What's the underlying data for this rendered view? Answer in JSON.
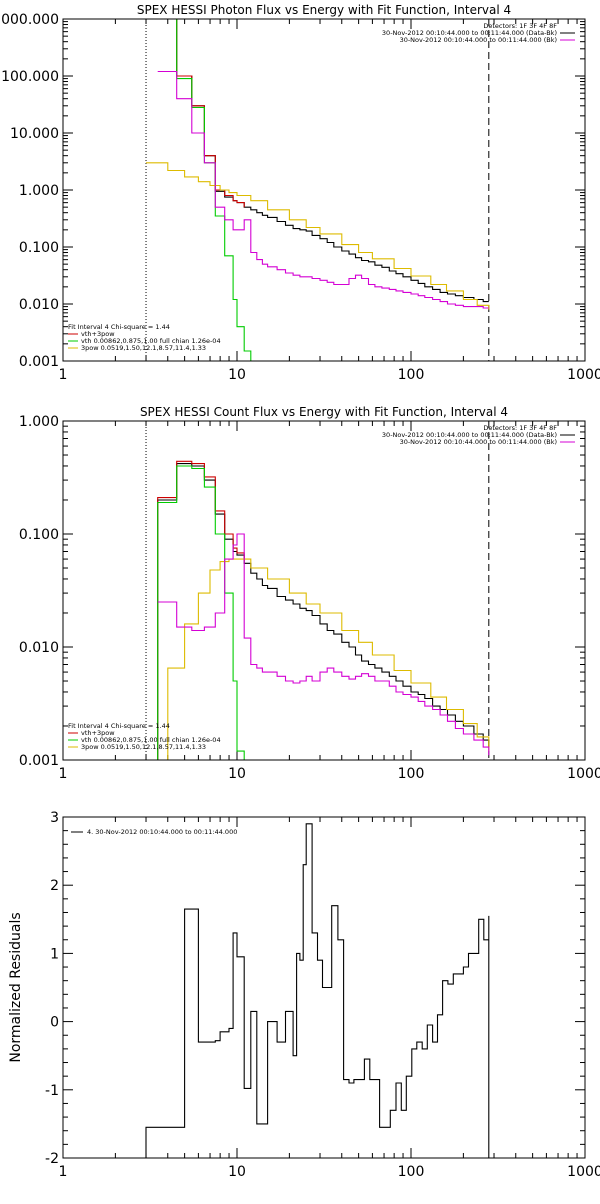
{
  "chart_data": [
    {
      "type": "line",
      "title": "SPEX HESSI Photon Flux vs Energy with Fit Function, Interval 4",
      "ylabel": "",
      "xscale": "log",
      "yscale": "log",
      "xlim": [
        1,
        1000
      ],
      "ylim": [
        0.001,
        1000
      ],
      "x_ticks": [
        1,
        10,
        100,
        1000
      ],
      "x_tick_labels": [
        "1",
        "10",
        "100",
        "1000"
      ],
      "y_ticks": [
        0.001,
        0.01,
        0.1,
        1,
        10,
        100,
        1000
      ],
      "y_tick_labels": [
        "0.001",
        "0.010",
        "0.100",
        "1.000",
        "10.000",
        "100.000",
        "1000.000"
      ],
      "vlines": [
        {
          "x": 3.0,
          "style": "dotted"
        },
        {
          "x": 280,
          "style": "dashed"
        }
      ],
      "header_legend": [
        {
          "text": "Detectors: 1F 3F 4F 8F",
          "color": "#000000"
        },
        {
          "text": "30-Nov-2012 00:10:44.000 to 00:11:44.000 (Data-Bk)",
          "color": "#000000"
        },
        {
          "text": "30-Nov-2012 00:10:44.000 to 00:11:44.000 (Bk)",
          "color": "#d400d4"
        }
      ],
      "fit_legend": [
        {
          "text": "Fit Interval 4    Chi-square = 1.44",
          "color": null
        },
        {
          "text": "vth+3pow",
          "color": "#cc0000"
        },
        {
          "text": "vth 0.00862,0.875,1.00  full chian 1.26e-04",
          "color": "#00cc00"
        },
        {
          "text": "3pow 0.0519,1.50,12.1,8.57,11.4,1.33",
          "color": "#ddbb00"
        }
      ],
      "series": [
        {
          "name": "Data-Bk",
          "color": "#000000",
          "x": [
            3.0,
            3.5,
            4.0,
            4.5,
            5.0,
            5.5,
            6.0,
            6.5,
            7.0,
            7.5,
            8.0,
            8.5,
            9.0,
            9.5,
            10,
            11,
            12,
            13,
            14,
            15,
            17,
            19,
            21,
            23,
            25,
            27,
            30,
            33,
            36,
            40,
            44,
            48,
            52,
            57,
            62,
            68,
            75,
            82,
            90,
            100,
            110,
            120,
            133,
            147,
            162,
            180,
            200,
            230,
            260,
            280
          ],
          "y": [
            1000,
            1000,
            1000,
            100,
            100,
            30,
            30,
            4.0,
            4.0,
            0.95,
            0.95,
            0.75,
            0.75,
            0.65,
            0.6,
            0.5,
            0.45,
            0.4,
            0.36,
            0.33,
            0.28,
            0.24,
            0.21,
            0.2,
            0.19,
            0.16,
            0.14,
            0.12,
            0.1,
            0.085,
            0.075,
            0.065,
            0.058,
            0.055,
            0.048,
            0.044,
            0.038,
            0.034,
            0.03,
            0.026,
            0.023,
            0.02,
            0.018,
            0.016,
            0.015,
            0.014,
            0.013,
            0.012,
            0.011,
            0.011
          ]
        },
        {
          "name": "vth+3pow",
          "color": "#cc0000",
          "x": [
            3.0,
            3.5,
            4.0,
            4.5,
            5.0,
            5.5,
            6.0,
            6.5,
            7.0,
            7.5,
            8.0,
            8.5,
            9.0,
            9.5,
            10,
            11
          ],
          "y": [
            1000,
            1000,
            1000,
            100,
            100,
            30,
            30,
            4.0,
            4.0,
            1.0,
            1.0,
            0.8,
            0.8,
            0.65,
            0.6,
            0.5
          ]
        },
        {
          "name": "vth",
          "color": "#00cc00",
          "x": [
            3.0,
            3.5,
            4.0,
            4.5,
            5.0,
            5.5,
            6.0,
            6.5,
            7.0,
            7.5,
            8.0,
            8.5,
            9.0,
            9.5,
            10,
            11,
            12
          ],
          "y": [
            1000,
            1000,
            1000,
            90,
            90,
            28,
            28,
            3.0,
            3.0,
            0.35,
            0.35,
            0.07,
            0.07,
            0.012,
            0.004,
            0.0015,
            0.001
          ]
        },
        {
          "name": "3pow",
          "color": "#ddbb00",
          "x": [
            3.0,
            4.0,
            5.0,
            6.0,
            7.0,
            8.0,
            9.0,
            10,
            12,
            15,
            20,
            25,
            30,
            40,
            50,
            60,
            80,
            100,
            130,
            160,
            200,
            240,
            280
          ],
          "y": [
            3.0,
            2.2,
            1.7,
            1.4,
            1.2,
            1.0,
            0.9,
            0.8,
            0.65,
            0.45,
            0.3,
            0.22,
            0.17,
            0.11,
            0.08,
            0.062,
            0.042,
            0.031,
            0.022,
            0.017,
            0.012,
            0.0095,
            0.008
          ]
        },
        {
          "name": "Bk",
          "color": "#d400d4",
          "x": [
            3.5,
            4.0,
            4.5,
            5.0,
            5.5,
            6.0,
            6.5,
            7.0,
            7.5,
            8.0,
            8.5,
            9.0,
            9.5,
            10,
            11,
            12,
            13,
            14,
            15,
            17,
            19,
            21,
            23,
            25,
            27,
            30,
            33,
            36,
            40,
            44,
            48,
            52,
            57,
            62,
            68,
            75,
            82,
            90,
            100,
            110,
            120,
            133,
            147,
            162,
            180,
            200,
            230,
            260,
            280
          ],
          "y": [
            120,
            120,
            40,
            40,
            10,
            10,
            3.0,
            3.0,
            0.5,
            0.5,
            0.3,
            0.3,
            0.2,
            0.2,
            0.3,
            0.08,
            0.06,
            0.05,
            0.045,
            0.04,
            0.035,
            0.032,
            0.03,
            0.03,
            0.028,
            0.026,
            0.024,
            0.022,
            0.022,
            0.028,
            0.032,
            0.028,
            0.022,
            0.02,
            0.019,
            0.018,
            0.017,
            0.016,
            0.015,
            0.014,
            0.013,
            0.012,
            0.011,
            0.01,
            0.0095,
            0.009,
            0.009,
            0.0085,
            0.0085
          ]
        }
      ]
    },
    {
      "type": "line",
      "title": "SPEX HESSI Count Flux vs Energy with Fit Function, Interval 4",
      "ylabel": "",
      "xscale": "log",
      "yscale": "log",
      "xlim": [
        1,
        1000
      ],
      "ylim": [
        0.001,
        1
      ],
      "x_ticks": [
        1,
        10,
        100,
        1000
      ],
      "x_tick_labels": [
        "1",
        "10",
        "100",
        "1000"
      ],
      "y_ticks": [
        0.001,
        0.01,
        0.1,
        1
      ],
      "y_tick_labels": [
        "0.001",
        "0.010",
        "0.100",
        "1.000"
      ],
      "vlines": [
        {
          "x": 3.0,
          "style": "dotted"
        },
        {
          "x": 280,
          "style": "dashed"
        }
      ],
      "header_legend": [
        {
          "text": "Detectors: 1F 3F 4F 8F",
          "color": "#000000"
        },
        {
          "text": "30-Nov-2012 00:10:44.000 to 00:11:44.000 (Data-Bk)",
          "color": "#000000"
        },
        {
          "text": "30-Nov-2012 00:10:44.000 to 00:11:44.000 (Bk)",
          "color": "#d400d4"
        }
      ],
      "fit_legend": [
        {
          "text": "Fit Interval 4    Chi-square = 1.44",
          "color": null
        },
        {
          "text": "vth+3pow",
          "color": "#cc0000"
        },
        {
          "text": "vth 0.00862,0.875,1.00  full chian 1.26e-04",
          "color": "#00cc00"
        },
        {
          "text": "3pow 0.0519,1.50,12.1,8.57,11.4,1.33",
          "color": "#ddbb00"
        }
      ],
      "series": [
        {
          "name": "Data-Bk",
          "color": "#000000",
          "x": [
            3.0,
            3.5,
            4.0,
            4.5,
            5.0,
            5.5,
            6.0,
            6.5,
            7.0,
            7.5,
            8.0,
            8.5,
            9.0,
            9.5,
            10,
            11,
            12,
            13,
            14,
            15,
            17,
            19,
            21,
            23,
            25,
            27,
            30,
            33,
            36,
            40,
            44,
            48,
            52,
            57,
            62,
            68,
            75,
            82,
            90,
            100,
            110,
            120,
            133,
            147,
            162,
            180,
            200,
            230,
            260,
            280
          ],
          "y": [
            0.001,
            0.2,
            0.2,
            0.42,
            0.42,
            0.4,
            0.4,
            0.3,
            0.3,
            0.15,
            0.15,
            0.09,
            0.09,
            0.07,
            0.065,
            0.055,
            0.045,
            0.04,
            0.035,
            0.033,
            0.028,
            0.026,
            0.024,
            0.022,
            0.021,
            0.019,
            0.016,
            0.014,
            0.013,
            0.011,
            0.01,
            0.0085,
            0.0075,
            0.007,
            0.0065,
            0.006,
            0.0055,
            0.005,
            0.0045,
            0.004,
            0.0038,
            0.0035,
            0.003,
            0.0028,
            0.0025,
            0.0022,
            0.002,
            0.0017,
            0.0015,
            0.0013
          ]
        },
        {
          "name": "vth+3pow",
          "color": "#cc0000",
          "x": [
            3.0,
            3.5,
            4.0,
            4.5,
            5.0,
            5.5,
            6.0,
            6.5,
            7.0,
            7.5,
            8.0,
            8.5,
            9.0,
            9.5,
            10,
            11
          ],
          "y": [
            0.001,
            0.21,
            0.21,
            0.44,
            0.44,
            0.42,
            0.42,
            0.32,
            0.32,
            0.16,
            0.16,
            0.1,
            0.1,
            0.075,
            0.068,
            0.058
          ]
        },
        {
          "name": "vth",
          "color": "#00cc00",
          "x": [
            3.0,
            3.5,
            4.0,
            4.5,
            5.0,
            5.5,
            6.0,
            6.5,
            7.0,
            7.5,
            8.0,
            8.5,
            9.0,
            9.5,
            10,
            11
          ],
          "y": [
            0.001,
            0.19,
            0.19,
            0.4,
            0.4,
            0.38,
            0.38,
            0.26,
            0.26,
            0.1,
            0.1,
            0.03,
            0.03,
            0.005,
            0.0012,
            0.001
          ]
        },
        {
          "name": "3pow",
          "color": "#ddbb00",
          "x": [
            3.0,
            4.0,
            4.5,
            5.0,
            5.5,
            6.0,
            6.5,
            7.0,
            8.0,
            9.0,
            10,
            12,
            15,
            20,
            25,
            30,
            40,
            50,
            60,
            80,
            100,
            130,
            160,
            200,
            240,
            280
          ],
          "y": [
            0.001,
            0.0065,
            0.0065,
            0.016,
            0.016,
            0.03,
            0.03,
            0.048,
            0.057,
            0.06,
            0.06,
            0.05,
            0.04,
            0.03,
            0.024,
            0.02,
            0.014,
            0.011,
            0.0085,
            0.0062,
            0.0048,
            0.0036,
            0.0028,
            0.0021,
            0.0016,
            0.0012
          ]
        },
        {
          "name": "Bk",
          "color": "#d400d4",
          "x": [
            3.5,
            4.0,
            4.5,
            5.0,
            5.5,
            6.0,
            6.5,
            7.0,
            7.5,
            8.0,
            8.5,
            9.0,
            9.5,
            10,
            11,
            12,
            13,
            14,
            15,
            17,
            19,
            21,
            23,
            25,
            27,
            30,
            33,
            36,
            40,
            44,
            48,
            52,
            57,
            62,
            68,
            75,
            82,
            90,
            100,
            110,
            120,
            133,
            147,
            162,
            180,
            200,
            230,
            260,
            280
          ],
          "y": [
            0.025,
            0.025,
            0.015,
            0.015,
            0.014,
            0.014,
            0.015,
            0.015,
            0.02,
            0.02,
            0.06,
            0.06,
            0.08,
            0.1,
            0.012,
            0.007,
            0.0065,
            0.006,
            0.006,
            0.0055,
            0.005,
            0.0048,
            0.005,
            0.0055,
            0.005,
            0.006,
            0.0065,
            0.006,
            0.0055,
            0.0052,
            0.0055,
            0.0058,
            0.0055,
            0.005,
            0.005,
            0.0045,
            0.004,
            0.0038,
            0.0036,
            0.0033,
            0.003,
            0.0028,
            0.0025,
            0.0022,
            0.0019,
            0.0017,
            0.0015,
            0.0013,
            0.0011
          ]
        }
      ]
    },
    {
      "type": "line",
      "title": "",
      "ylabel": "Normalized Residuals",
      "xscale": "log",
      "yscale": "linear",
      "xlim": [
        1,
        1000
      ],
      "ylim": [
        -2,
        3
      ],
      "x_ticks": [
        1,
        10,
        100,
        1000
      ],
      "x_tick_labels": [
        "1",
        "10",
        "100",
        "1000"
      ],
      "y_ticks": [
        -2,
        -1,
        0,
        1,
        2,
        3
      ],
      "y_tick_labels": [
        "-2",
        "-1",
        "0",
        "1",
        "2",
        "3"
      ],
      "header_legend": [
        {
          "text": "4. 30-Nov-2012 00:10:44.000 to 00:11:44.000",
          "color": "#000000"
        }
      ],
      "series": [
        {
          "name": "4. 30-Nov-2012 00:10:44.000 to 00:11:44.000",
          "color": "#000000",
          "x": [
            3.0,
            4.0,
            5.0,
            5.5,
            6.0,
            7.0,
            7.5,
            8.0,
            8.5,
            9.0,
            9.5,
            10,
            10.5,
            11,
            11.5,
            12,
            13,
            14,
            15,
            16,
            17,
            18,
            19,
            20,
            21,
            22,
            23,
            24,
            25,
            26,
            27,
            29,
            31,
            33,
            35,
            38,
            41,
            44,
            47,
            50,
            54,
            58,
            62,
            66,
            71,
            76,
            82,
            88,
            94,
            101,
            108,
            116,
            124,
            133,
            142,
            152,
            163,
            175,
            187,
            200,
            214,
            229,
            245,
            262,
            280
          ],
          "y": [
            -1.55,
            -1.55,
            1.65,
            1.65,
            -0.3,
            -0.3,
            -0.28,
            -0.15,
            -0.15,
            -0.1,
            1.3,
            0.95,
            0.95,
            -0.98,
            -0.98,
            0.15,
            -1.5,
            -1.5,
            0.0,
            0.0,
            -0.3,
            -0.3,
            0.15,
            0.15,
            -0.5,
            1.0,
            0.9,
            2.3,
            2.9,
            2.9,
            1.3,
            0.9,
            0.5,
            0.5,
            1.7,
            1.2,
            -0.85,
            -0.9,
            -0.85,
            -0.85,
            -0.55,
            -0.85,
            -0.85,
            -1.55,
            -1.55,
            -1.3,
            -0.9,
            -1.3,
            -0.8,
            -0.4,
            -0.3,
            -0.4,
            -0.05,
            -0.3,
            0.1,
            0.6,
            0.55,
            0.7,
            0.7,
            0.8,
            1.0,
            1.0,
            1.5,
            1.2,
            1.55
          ]
        }
      ]
    }
  ]
}
